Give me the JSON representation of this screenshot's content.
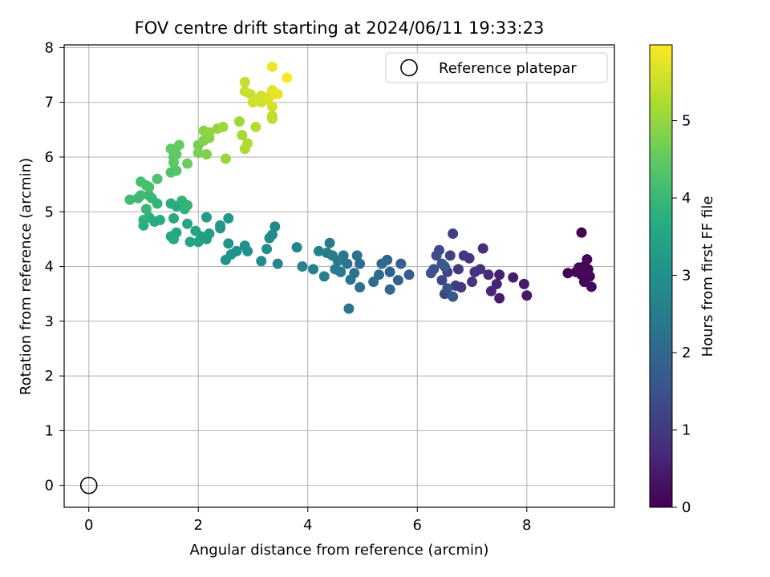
{
  "chart_data": {
    "type": "scatter",
    "title": "FOV centre drift starting at 2024/06/11 19:33:23",
    "xlabel": "Angular distance from reference (arcmin)",
    "ylabel": "Rotation from reference (arcmin)",
    "xlim": [
      -0.45,
      9.6
    ],
    "ylim": [
      -0.4,
      8.05
    ],
    "xticks": [
      0,
      2,
      4,
      6,
      8
    ],
    "yticks": [
      0,
      1,
      2,
      3,
      4,
      5,
      6,
      7,
      8
    ],
    "grid": true,
    "colormap": "viridis",
    "colorbar": {
      "label": "Hours from first FF file",
      "range": [
        0,
        5.98
      ],
      "ticks": [
        0,
        1,
        2,
        3,
        4,
        5
      ]
    },
    "legend": {
      "position": "top-right",
      "entries": [
        "Reference platepar"
      ]
    },
    "reference_point": {
      "x": 0,
      "y": 0
    },
    "points": [
      [
        9.0,
        4.62,
        0.02
      ],
      [
        8.75,
        3.88,
        0.04
      ],
      [
        8.9,
        3.9,
        0.05
      ],
      [
        9.05,
        4.0,
        0.06
      ],
      [
        9.1,
        4.13,
        0.07
      ],
      [
        9.12,
        3.95,
        0.08
      ],
      [
        9.0,
        3.85,
        0.09
      ],
      [
        9.15,
        3.82,
        0.1
      ],
      [
        9.05,
        3.72,
        0.11
      ],
      [
        9.18,
        3.63,
        0.12
      ],
      [
        8.95,
        3.98,
        0.14
      ],
      [
        9.08,
        3.9,
        0.15
      ],
      [
        8.0,
        3.47,
        0.4
      ],
      [
        7.95,
        3.68,
        0.45
      ],
      [
        7.75,
        3.8,
        0.5
      ],
      [
        7.5,
        3.85,
        0.55
      ],
      [
        7.45,
        3.68,
        0.6
      ],
      [
        7.35,
        3.55,
        0.65
      ],
      [
        7.3,
        3.85,
        0.7
      ],
      [
        7.2,
        4.33,
        0.75
      ],
      [
        7.15,
        3.95,
        0.8
      ],
      [
        7.05,
        3.9,
        0.85
      ],
      [
        6.95,
        4.15,
        0.9
      ],
      [
        6.85,
        4.2,
        0.95
      ],
      [
        6.75,
        3.95,
        1.0
      ],
      [
        6.7,
        3.65,
        1.05
      ],
      [
        6.65,
        4.6,
        1.1
      ],
      [
        6.6,
        4.2,
        1.15
      ],
      [
        6.55,
        3.9,
        1.2
      ],
      [
        6.5,
        3.5,
        1.25
      ],
      [
        6.45,
        3.75,
        1.3
      ],
      [
        6.4,
        4.3,
        1.35
      ],
      [
        6.35,
        4.2,
        1.4
      ],
      [
        6.3,
        3.95,
        1.45
      ],
      [
        6.25,
        3.88,
        1.5
      ],
      [
        6.45,
        4.05,
        1.55
      ],
      [
        6.55,
        3.6,
        1.6
      ],
      [
        6.65,
        3.45,
        1.65
      ],
      [
        6.5,
        4.0,
        1.7
      ],
      [
        7.0,
        3.72,
        0.9
      ],
      [
        7.5,
        3.42,
        0.5
      ],
      [
        6.8,
        3.62,
        1.0
      ],
      [
        5.85,
        3.85,
        1.75
      ],
      [
        5.7,
        4.05,
        1.8
      ],
      [
        5.65,
        3.75,
        1.85
      ],
      [
        5.5,
        3.9,
        1.9
      ],
      [
        5.45,
        4.12,
        1.95
      ],
      [
        5.35,
        4.05,
        2.0
      ],
      [
        5.3,
        3.85,
        2.05
      ],
      [
        5.2,
        3.72,
        2.1
      ],
      [
        5.5,
        3.58,
        2.0
      ],
      [
        4.95,
        4.05,
        2.15
      ],
      [
        4.9,
        4.2,
        2.2
      ],
      [
        4.85,
        3.88,
        2.25
      ],
      [
        4.78,
        3.76,
        2.3
      ],
      [
        4.72,
        4.05,
        2.35
      ],
      [
        4.65,
        4.2,
        2.35
      ],
      [
        4.6,
        3.9,
        2.4
      ],
      [
        4.55,
        4.1,
        2.4
      ],
      [
        4.5,
        3.95,
        2.45
      ],
      [
        4.45,
        4.2,
        2.45
      ],
      [
        4.4,
        4.43,
        2.5
      ],
      [
        4.35,
        4.25,
        2.5
      ],
      [
        4.3,
        3.82,
        2.55
      ],
      [
        4.2,
        4.28,
        2.55
      ],
      [
        4.75,
        3.23,
        2.3
      ],
      [
        4.95,
        3.62,
        2.2
      ],
      [
        4.1,
        3.95,
        2.6
      ],
      [
        3.9,
        4.0,
        2.65
      ],
      [
        3.8,
        4.35,
        2.7
      ],
      [
        3.45,
        4.05,
        2.75
      ],
      [
        3.4,
        4.73,
        2.8
      ],
      [
        3.35,
        4.58,
        2.85
      ],
      [
        3.3,
        4.52,
        2.85
      ],
      [
        3.25,
        4.32,
        2.9
      ],
      [
        3.15,
        4.1,
        2.9
      ],
      [
        2.9,
        4.28,
        3.0
      ],
      [
        2.85,
        4.38,
        3.0
      ],
      [
        2.7,
        4.28,
        3.05
      ],
      [
        2.6,
        4.22,
        3.05
      ],
      [
        2.55,
        4.42,
        3.1
      ],
      [
        2.5,
        4.12,
        3.1
      ],
      [
        2.55,
        4.88,
        3.15
      ],
      [
        2.4,
        4.7,
        3.15
      ],
      [
        2.4,
        4.75,
        3.2
      ],
      [
        2.15,
        4.9,
        3.25
      ],
      [
        2.2,
        4.6,
        3.3
      ],
      [
        2.15,
        4.5,
        3.3
      ],
      [
        2.05,
        4.55,
        3.35
      ],
      [
        2.0,
        4.45,
        3.4
      ],
      [
        1.95,
        4.65,
        3.4
      ],
      [
        1.85,
        4.45,
        3.45
      ],
      [
        1.8,
        4.78,
        3.5
      ],
      [
        1.6,
        4.62,
        3.55
      ],
      [
        1.55,
        4.5,
        3.55
      ],
      [
        1.5,
        4.55,
        3.6
      ],
      [
        1.55,
        4.88,
        3.6
      ],
      [
        1.6,
        5.1,
        3.65
      ],
      [
        1.5,
        5.15,
        3.65
      ],
      [
        1.3,
        4.85,
        3.7
      ],
      [
        1.2,
        4.82,
        3.7
      ],
      [
        1.1,
        4.9,
        3.75
      ],
      [
        1.0,
        4.75,
        3.75
      ],
      [
        1.0,
        4.85,
        3.8
      ],
      [
        1.75,
        5.05,
        3.85
      ],
      [
        1.7,
        5.2,
        3.85
      ],
      [
        1.8,
        5.12,
        3.9
      ],
      [
        1.25,
        5.15,
        3.9
      ],
      [
        1.15,
        5.25,
        3.95
      ],
      [
        1.05,
        5.05,
        4.0
      ],
      [
        1.1,
        5.3,
        4.0
      ],
      [
        0.95,
        5.3,
        4.05
      ],
      [
        0.9,
        5.25,
        4.05
      ],
      [
        0.75,
        5.22,
        4.1
      ],
      [
        1.1,
        5.45,
        4.15
      ],
      [
        0.95,
        5.55,
        4.15
      ],
      [
        1.05,
        5.48,
        4.2
      ],
      [
        1.25,
        5.6,
        4.25
      ],
      [
        1.5,
        5.72,
        4.3
      ],
      [
        1.6,
        5.75,
        4.35
      ],
      [
        1.55,
        6.0,
        4.4
      ],
      [
        1.55,
        5.9,
        4.45
      ],
      [
        1.5,
        6.15,
        4.5
      ],
      [
        1.6,
        6.05,
        4.5
      ],
      [
        1.65,
        6.22,
        4.55
      ],
      [
        1.8,
        5.88,
        4.6
      ],
      [
        2.0,
        6.22,
        4.7
      ],
      [
        2.0,
        6.08,
        4.75
      ],
      [
        2.15,
        6.05,
        4.8
      ],
      [
        2.1,
        6.3,
        4.85
      ],
      [
        2.2,
        6.35,
        4.85
      ],
      [
        2.1,
        6.48,
        4.9
      ],
      [
        2.2,
        6.45,
        4.95
      ],
      [
        2.35,
        6.52,
        5.0
      ],
      [
        2.45,
        6.55,
        5.05
      ],
      [
        2.5,
        5.97,
        5.05
      ],
      [
        2.75,
        6.65,
        5.1
      ],
      [
        2.8,
        6.4,
        5.15
      ],
      [
        2.85,
        6.15,
        5.2
      ],
      [
        2.9,
        6.25,
        5.25
      ],
      [
        3.05,
        6.55,
        5.3
      ],
      [
        3.35,
        6.7,
        5.35
      ],
      [
        3.35,
        6.75,
        5.4
      ],
      [
        2.85,
        7.2,
        5.45
      ],
      [
        2.85,
        7.37,
        5.45
      ],
      [
        2.95,
        7.15,
        5.5
      ],
      [
        3.0,
        7.0,
        5.5
      ],
      [
        3.05,
        7.05,
        5.55
      ],
      [
        3.15,
        7.12,
        5.55
      ],
      [
        3.25,
        7.05,
        5.6
      ],
      [
        3.35,
        6.92,
        5.6
      ],
      [
        3.3,
        7.1,
        5.65
      ],
      [
        3.35,
        7.22,
        5.7
      ],
      [
        3.45,
        7.15,
        5.75
      ],
      [
        3.35,
        7.65,
        5.85
      ],
      [
        3.62,
        7.45,
        5.95
      ],
      [
        3.15,
        7.0,
        5.6
      ],
      [
        3.4,
        7.15,
        5.8
      ]
    ]
  }
}
